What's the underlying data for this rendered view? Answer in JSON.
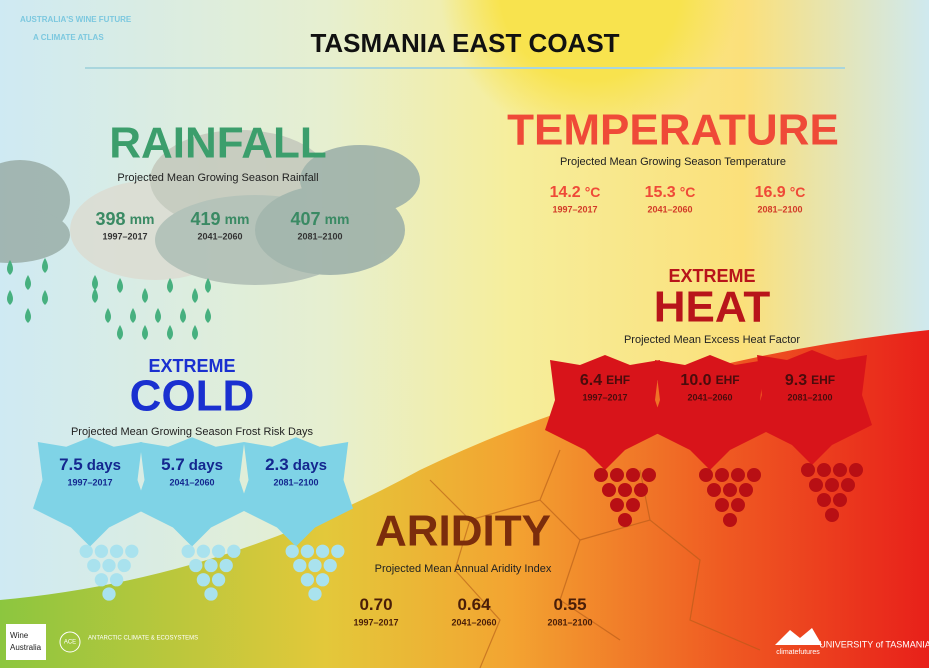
{
  "header": {
    "brand": [
      "AUSTRALIA'S WINE FUTURE",
      "A CLIMATE ATLAS"
    ],
    "title": "TASMANIA EAST COAST"
  },
  "rainfall": {
    "heading": "RAINFALL",
    "subtitle": "Projected Mean Growing Season Rainfall",
    "items": [
      {
        "value": "398",
        "unit": "mm",
        "period": "1997–2017"
      },
      {
        "value": "419",
        "unit": "mm",
        "period": "2041–2060"
      },
      {
        "value": "407",
        "unit": "mm",
        "period": "2081–2100"
      }
    ]
  },
  "temperature": {
    "heading": "TEMPERATURE",
    "subtitle": "Projected Mean Growing Season Temperature",
    "items": [
      {
        "value": "14.2",
        "unit": "°C",
        "period": "1997–2017"
      },
      {
        "value": "15.3",
        "unit": "°C",
        "period": "2041–2060"
      },
      {
        "value": "16.9",
        "unit": "°C",
        "period": "2081–2100"
      }
    ]
  },
  "heat": {
    "prefix": "EXTREME",
    "heading": "HEAT",
    "subtitle": "Projected Mean Excess Heat Factor",
    "items": [
      {
        "value": "6.4",
        "unit": "EHF",
        "period": "1997–2017"
      },
      {
        "value": "10.0",
        "unit": "EHF",
        "period": "2041–2060"
      },
      {
        "value": "9.3",
        "unit": "EHF",
        "period": "2081–2100"
      }
    ]
  },
  "cold": {
    "prefix": "EXTREME",
    "heading": "COLD",
    "subtitle": "Projected Mean Growing Season Frost Risk Days",
    "items": [
      {
        "value": "7.5",
        "unit": "days",
        "period": "1997–2017"
      },
      {
        "value": "5.7",
        "unit": "days",
        "period": "2041–2060"
      },
      {
        "value": "2.3",
        "unit": "days",
        "period": "2081–2100"
      }
    ]
  },
  "aridity": {
    "heading": "ARIDITY",
    "subtitle": "Projected Mean Annual Aridity Index",
    "items": [
      {
        "value": "0.70",
        "period": "1997–2017"
      },
      {
        "value": "0.64",
        "period": "2041–2060"
      },
      {
        "value": "0.55",
        "period": "2081–2100"
      }
    ]
  },
  "footer": {
    "logos": [
      "Wine",
      "Australia",
      "ACE",
      "ANTARCTIC CLIMATE & ECOSYSTEMS",
      "climatefutures",
      "UNIVERSITY of TASMANIA"
    ]
  }
}
